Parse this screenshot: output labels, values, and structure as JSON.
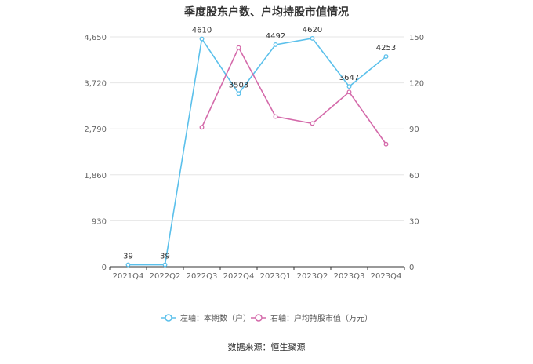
{
  "chart_data": {
    "type": "line",
    "title": "季度股东户数、户均持股市值情况",
    "categories": [
      "2021Q4",
      "2022Q2",
      "2022Q3",
      "2022Q4",
      "2023Q1",
      "2023Q2",
      "2023Q3",
      "2023Q4"
    ],
    "left_axis": {
      "ticks": [
        "0",
        "930",
        "1,860",
        "2,790",
        "3,720",
        "4,650"
      ],
      "ylim": [
        0,
        4650
      ]
    },
    "right_axis": {
      "ticks": [
        "0",
        "30",
        "60",
        "90",
        "120",
        "150"
      ],
      "ylim": [
        0,
        150
      ]
    },
    "series": [
      {
        "name": "左轴：本期数（户）",
        "axis": "left",
        "color": "#5bc0eb",
        "values": [
          39,
          39,
          4610,
          3503,
          4492,
          4620,
          3647,
          4253
        ],
        "labels": [
          "39",
          "39",
          "4610",
          "3503",
          "4492",
          "4620",
          "3647",
          "4253"
        ]
      },
      {
        "name": "右轴：户均持股市值（万元）",
        "axis": "right",
        "color": "#d46aaa",
        "values": [
          null,
          null,
          91,
          143,
          98,
          93.5,
          114,
          80
        ]
      }
    ],
    "grid": true,
    "legend_position": "bottom"
  },
  "source": "数据来源：恒生聚源"
}
